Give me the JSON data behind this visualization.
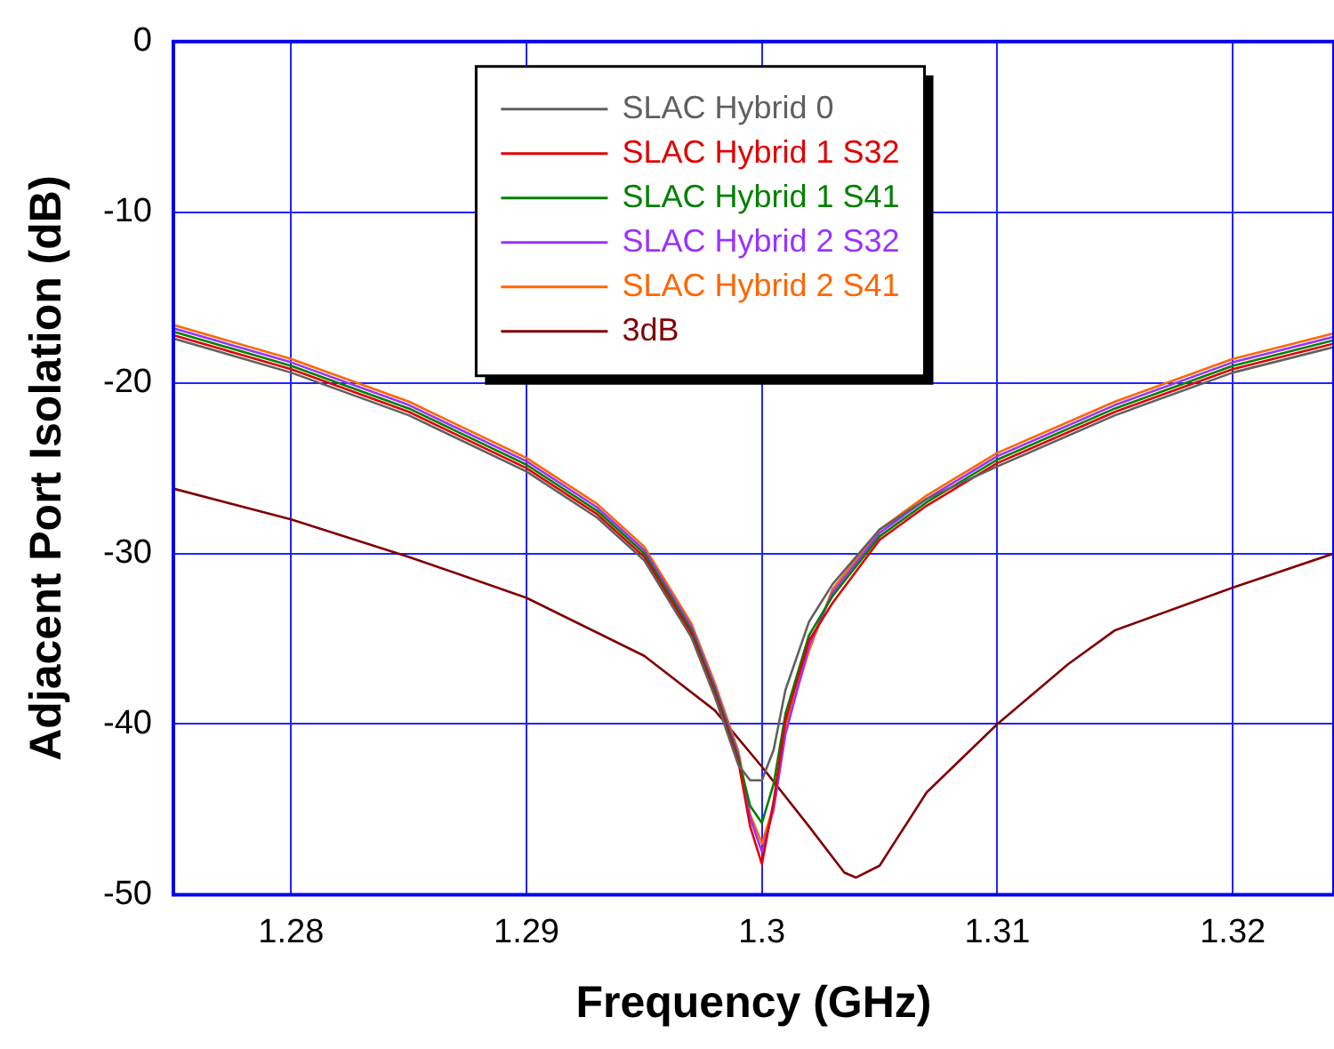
{
  "chart_data": {
    "type": "line",
    "xlabel": "Frequency (GHz)",
    "ylabel": "Adjacent Port Isolation (dB)",
    "xlim": [
      1.275,
      1.3243
    ],
    "xticks": [
      1.28,
      1.29,
      1.3,
      1.31,
      1.32
    ],
    "ylim": [
      -50,
      0
    ],
    "yticks": [
      0,
      -10,
      -20,
      -30,
      -40,
      -50
    ],
    "grid": true,
    "legend": "top",
    "marker": "none",
    "line_style": "solid",
    "x": [
      1.275,
      1.28,
      1.285,
      1.29,
      1.293,
      1.295,
      1.297,
      1.298,
      1.299,
      1.2995,
      1.3,
      1.3005,
      1.301,
      1.302,
      1.303,
      1.305,
      1.307,
      1.31,
      1.315,
      1.32,
      1.3243
    ],
    "series": [
      {
        "name": "SLAC Hybrid 0",
        "color": "#606060",
        "values": [
          -17.4,
          -19.4,
          -21.9,
          -25.2,
          -27.9,
          -30.4,
          -34.9,
          -38.4,
          -42.4,
          -43.3,
          -43.3,
          -41.5,
          -38,
          -34,
          -31.8,
          -28.6,
          -26.8,
          -24.9,
          -21.9,
          -19.4,
          -17.9
        ]
      },
      {
        "name": "SLAC Hybrid 1 S32",
        "color": "#e00000",
        "values": [
          -17.2,
          -19.2,
          -21.7,
          -25,
          -27.7,
          -30.2,
          -34.7,
          -38.2,
          -42.2,
          -46,
          -48.2,
          -44.5,
          -39.8,
          -35.1,
          -32.9,
          -29.2,
          -27.2,
          -24.7,
          -21.7,
          -19.2,
          -17.7
        ]
      },
      {
        "name": "SLAC Hybrid 1 S41",
        "color": "#008000",
        "values": [
          -17,
          -19,
          -21.5,
          -24.8,
          -27.5,
          -30,
          -34.5,
          -38,
          -42,
          -44.8,
          -45.8,
          -43.5,
          -39.4,
          -34.8,
          -32.5,
          -29,
          -27,
          -24.5,
          -21.5,
          -19,
          -17.5
        ]
      },
      {
        "name": "SLAC Hybrid 2 S32",
        "color": "#9933ff",
        "values": [
          -16.8,
          -18.8,
          -21.3,
          -24.6,
          -27.3,
          -29.8,
          -34.3,
          -37.8,
          -41.8,
          -45.5,
          -47.5,
          -45,
          -40.6,
          -35.4,
          -32.3,
          -28.8,
          -26.8,
          -24.3,
          -21.3,
          -18.8,
          -17.3
        ]
      },
      {
        "name": "SLAC Hybrid 2 S41",
        "color": "#ff6600",
        "values": [
          -16.6,
          -18.6,
          -21.1,
          -24.4,
          -27.1,
          -29.6,
          -34.1,
          -37.6,
          -41.6,
          -45.3,
          -47,
          -44.8,
          -40.2,
          -35.7,
          -32.1,
          -28.6,
          -26.6,
          -24.1,
          -21.1,
          -18.6,
          -17.1
        ]
      },
      {
        "name": "3dB",
        "color": "#800000",
        "x": [
          1.275,
          1.28,
          1.285,
          1.29,
          1.295,
          1.298,
          1.3,
          1.302,
          1.3035,
          1.304,
          1.305,
          1.307,
          1.31,
          1.313,
          1.315,
          1.32,
          1.3243
        ],
        "values": [
          -26.2,
          -28,
          -30.2,
          -32.6,
          -36,
          -39.2,
          -42.5,
          -46,
          -48.7,
          -49,
          -48.3,
          -44,
          -40,
          -36.5,
          -34.5,
          -32,
          -30
        ]
      }
    ]
  }
}
